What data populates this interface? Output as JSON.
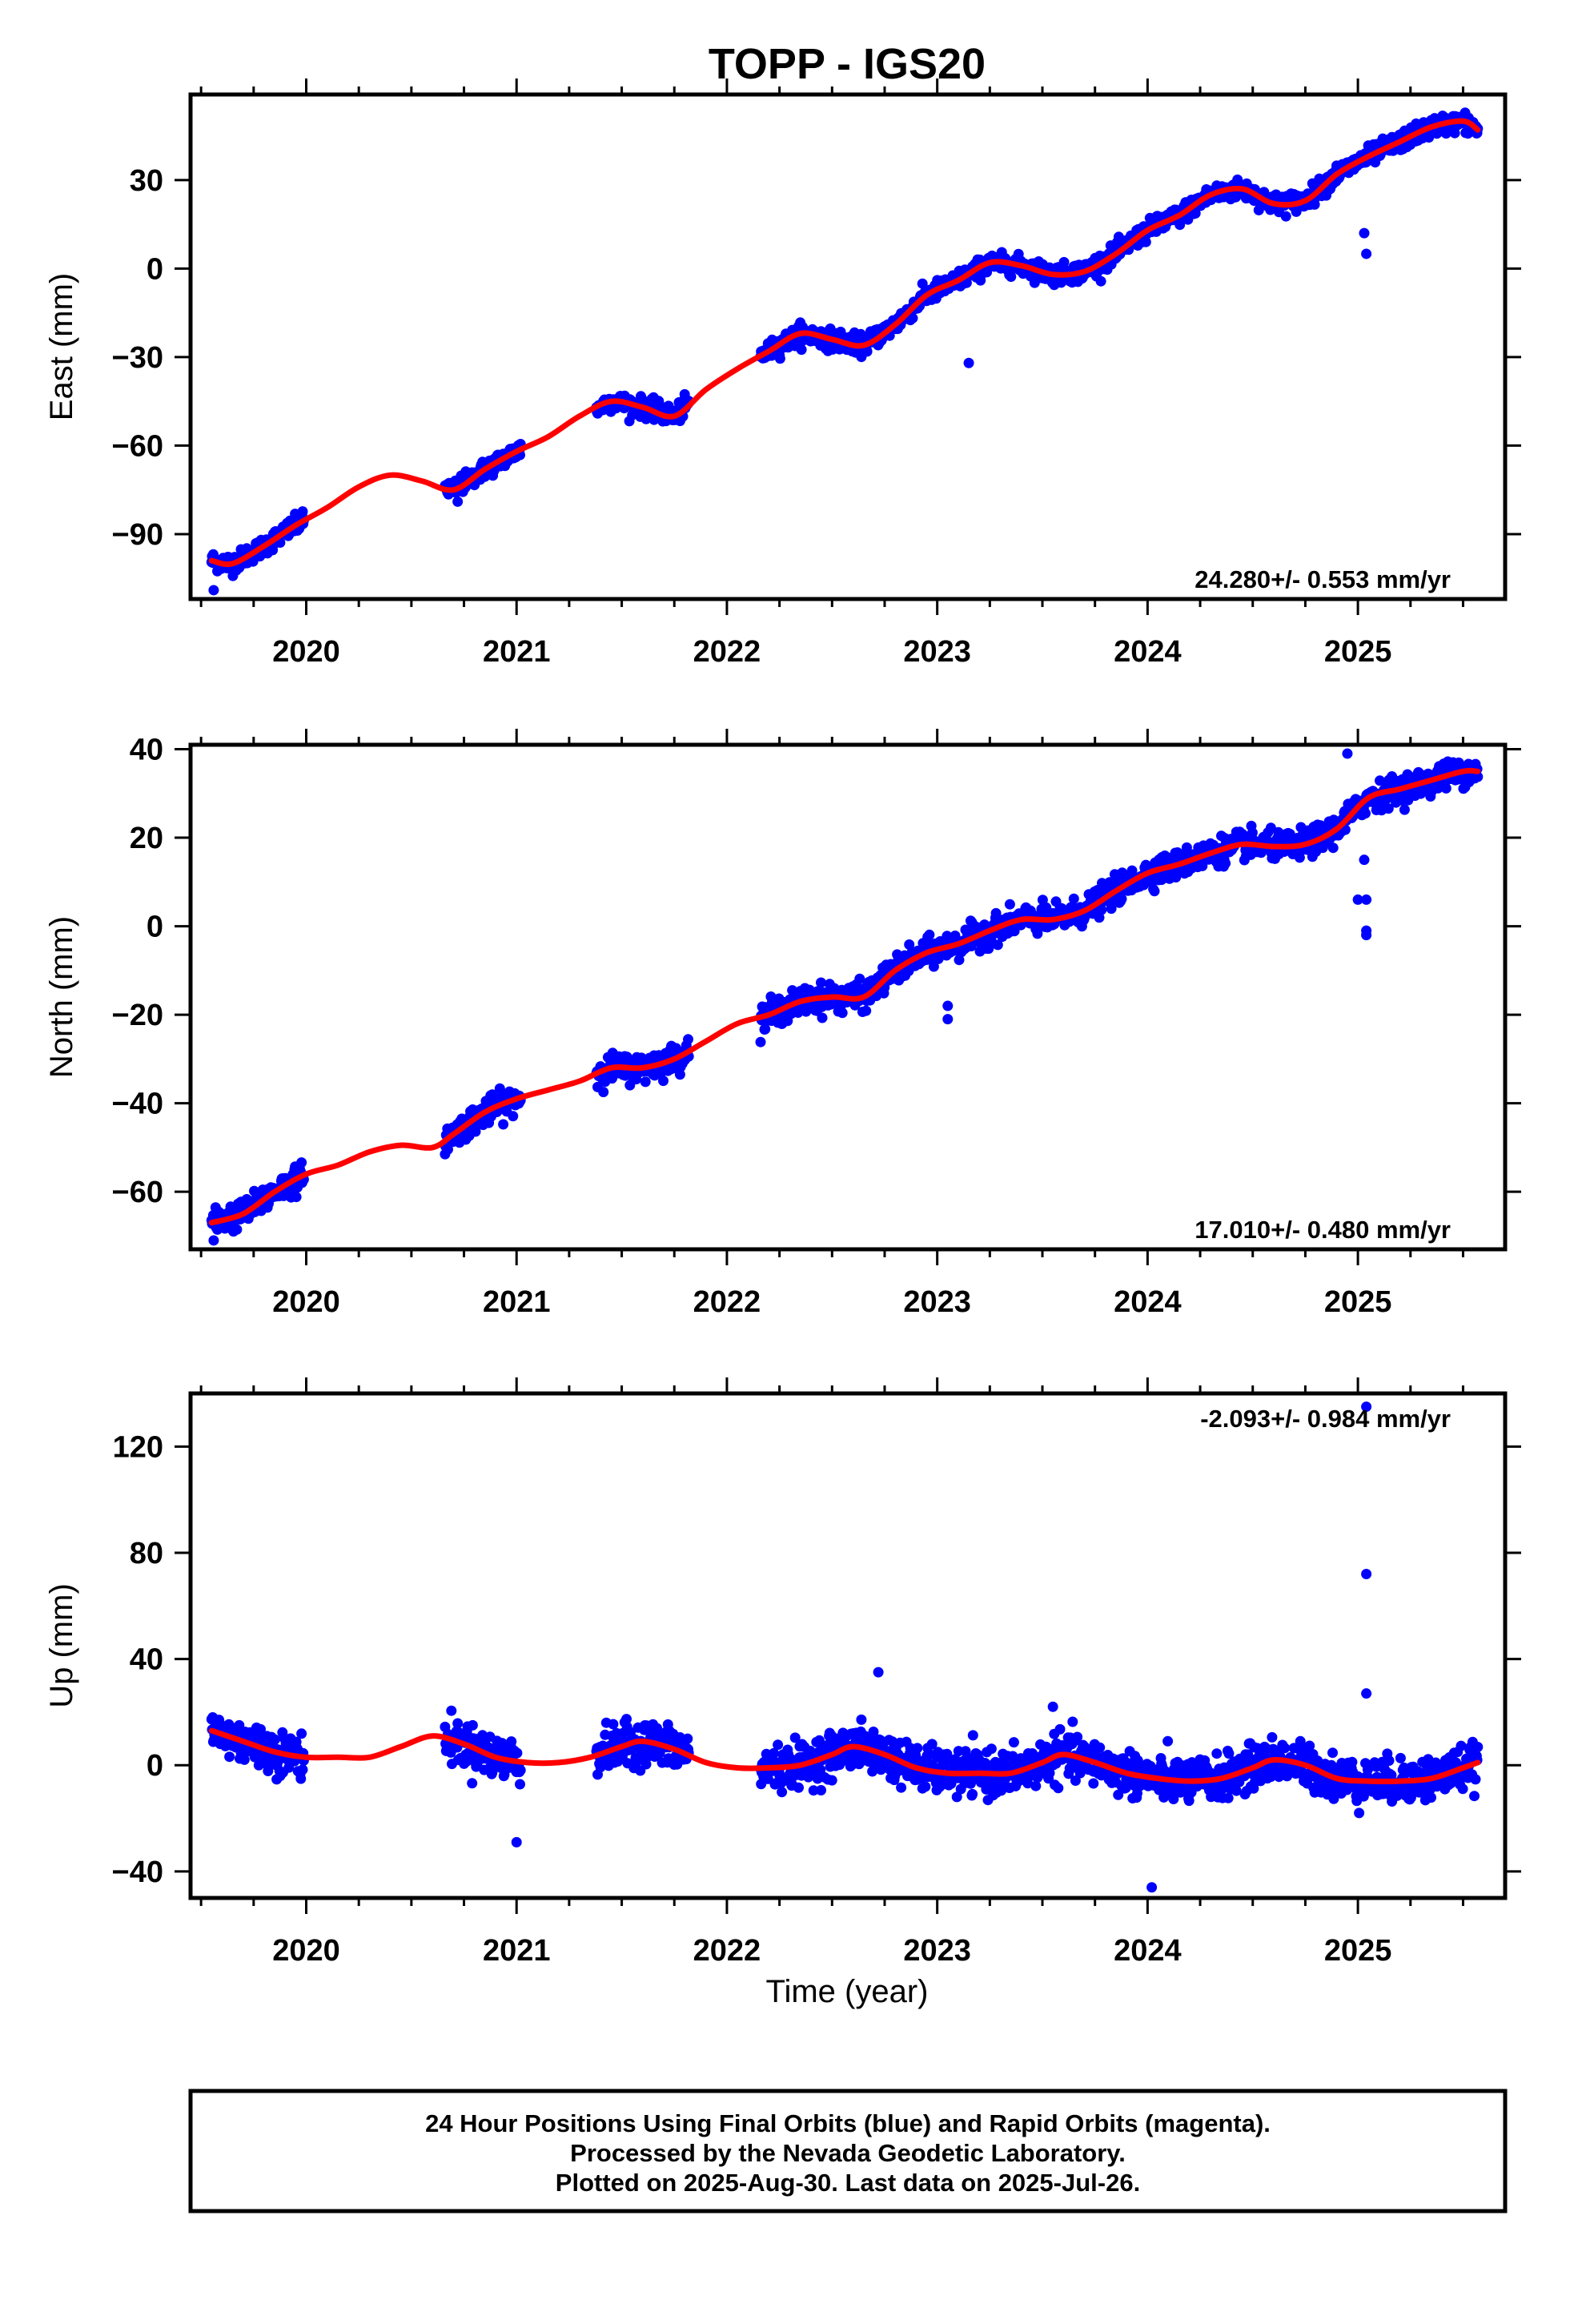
{
  "title": "TOPP - IGS20",
  "xlabel": "Time (year)",
  "footer": {
    "lines": [
      "24 Hour Positions Using Final Orbits (blue) and Rapid Orbits (magenta).",
      "Processed by the Nevada Geodetic Laboratory.",
      "Plotted on 2025-Aug-30. Last data on 2025-Jul-26."
    ]
  },
  "colors": {
    "data": "#0000ff",
    "model": "#ff0000",
    "frame": "#000000"
  },
  "chart_data": [
    {
      "type": "scatter",
      "title": "TOPP - IGS20",
      "ylabel": "East (mm)",
      "xlim": [
        2019.45,
        2025.7
      ],
      "ylim": [
        -112,
        59
      ],
      "xticks": [
        2020,
        2021,
        2022,
        2023,
        2024,
        2025
      ],
      "yticks": [
        -90,
        -60,
        -30,
        0,
        30
      ],
      "ytick_labels": [
        "−90",
        "−60",
        "−30",
        "0",
        "30"
      ],
      "rate_text": "24.280+/- 0.553 mm/yr",
      "rate_position": "bottom-right",
      "grid": false,
      "series": [
        {
          "name": "Final Orbits",
          "style": "points",
          "color": "#0000ff",
          "segments": [
            [
              2019.55,
              2019.99
            ],
            [
              2020.66,
              2021.02
            ],
            [
              2021.38,
              2021.82
            ],
            [
              2022.16,
              2022.97
            ],
            [
              2022.97,
              2025.57
            ]
          ],
          "outliers": [
            [
              2019.56,
              -109
            ],
            [
              2023.15,
              -32
            ],
            [
              2025.03,
              12
            ],
            [
              2025.04,
              5
            ],
            [
              2020.72,
              -79
            ]
          ],
          "scatter_sd_mm": 1.6
        },
        {
          "name": "Model",
          "style": "line",
          "color": "#ff0000",
          "x": [
            2019.55,
            2019.65,
            2019.8,
            2019.95,
            2020.1,
            2020.25,
            2020.4,
            2020.55,
            2020.7,
            2020.85,
            2021.0,
            2021.15,
            2021.3,
            2021.45,
            2021.6,
            2021.75,
            2021.9,
            2022.05,
            2022.2,
            2022.35,
            2022.5,
            2022.65,
            2022.8,
            2022.95,
            2023.1,
            2023.25,
            2023.4,
            2023.55,
            2023.7,
            2023.85,
            2024.0,
            2024.15,
            2024.3,
            2024.45,
            2024.6,
            2024.75,
            2024.9,
            2025.05,
            2025.2,
            2025.35,
            2025.5,
            2025.57
          ],
          "y": [
            -99,
            -100,
            -94,
            -87,
            -81,
            -74,
            -70,
            -72,
            -75,
            -68,
            -62,
            -57,
            -50,
            -45,
            -47,
            -50,
            -41,
            -34,
            -28,
            -22,
            -24,
            -26,
            -19,
            -9,
            -4,
            2,
            1,
            -2,
            -1,
            5,
            13,
            18,
            25,
            27,
            22,
            23,
            32,
            38,
            43,
            48,
            50,
            47
          ]
        }
      ]
    },
    {
      "type": "scatter",
      "ylabel": "North (mm)",
      "xlim": [
        2019.45,
        2025.7
      ],
      "ylim": [
        -73,
        41
      ],
      "xticks": [
        2020,
        2021,
        2022,
        2023,
        2024,
        2025
      ],
      "yticks": [
        -60,
        -40,
        -20,
        0,
        20,
        40
      ],
      "ytick_labels": [
        "−60",
        "−40",
        "−20",
        "0",
        "20",
        "40"
      ],
      "rate_text": "17.010+/- 0.480 mm/yr",
      "rate_position": "bottom-right",
      "grid": false,
      "series": [
        {
          "name": "Final Orbits",
          "style": "points",
          "color": "#0000ff",
          "segments": [
            [
              2019.55,
              2019.99
            ],
            [
              2020.66,
              2021.02
            ],
            [
              2021.38,
              2021.82
            ],
            [
              2022.16,
              2022.97
            ],
            [
              2022.97,
              2025.57
            ]
          ],
          "outliers": [
            [
              2019.56,
              -71
            ],
            [
              2023.05,
              -21
            ],
            [
              2023.05,
              -18
            ],
            [
              2025.0,
              6
            ],
            [
              2025.04,
              6
            ],
            [
              2025.04,
              -1
            ],
            [
              2025.04,
              -2
            ],
            [
              2024.95,
              39
            ],
            [
              2022.75,
              -13
            ],
            [
              2025.03,
              15
            ]
          ],
          "scatter_sd_mm": 1.5
        },
        {
          "name": "Model",
          "style": "line",
          "color": "#ff0000",
          "x": [
            2019.55,
            2019.7,
            2019.85,
            2020.0,
            2020.15,
            2020.3,
            2020.45,
            2020.6,
            2020.7,
            2020.85,
            2021.0,
            2021.15,
            2021.3,
            2021.45,
            2021.6,
            2021.75,
            2021.9,
            2022.05,
            2022.2,
            2022.35,
            2022.5,
            2022.65,
            2022.8,
            2022.95,
            2023.1,
            2023.25,
            2023.4,
            2023.55,
            2023.7,
            2023.85,
            2024.0,
            2024.15,
            2024.3,
            2024.45,
            2024.6,
            2024.75,
            2024.9,
            2025.05,
            2025.2,
            2025.35,
            2025.5,
            2025.57
          ],
          "y": [
            -67,
            -65,
            -60,
            -56,
            -54,
            -51,
            -49.5,
            -50,
            -47,
            -42,
            -39,
            -37,
            -35,
            -32,
            -32,
            -30,
            -26,
            -22,
            -20,
            -17,
            -16,
            -16,
            -10,
            -6,
            -4,
            -1,
            1.5,
            1.5,
            3.5,
            8,
            12,
            14,
            16.5,
            18.5,
            18,
            18.5,
            22,
            29,
            31,
            33,
            35,
            35
          ]
        }
      ]
    },
    {
      "type": "scatter",
      "ylabel": "Up (mm)",
      "xlim": [
        2019.45,
        2025.7
      ],
      "ylim": [
        -50,
        140
      ],
      "xticks": [
        2020,
        2021,
        2022,
        2023,
        2024,
        2025
      ],
      "yticks": [
        -40,
        0,
        40,
        80,
        120
      ],
      "ytick_labels": [
        "−40",
        "0",
        "40",
        "80",
        "120"
      ],
      "rate_text": "-2.093+/- 0.984 mm/yr",
      "rate_position": "top-right",
      "grid": false,
      "series": [
        {
          "name": "Final Orbits",
          "style": "points",
          "color": "#0000ff",
          "segments": [
            [
              2019.55,
              2019.99
            ],
            [
              2020.66,
              2021.02
            ],
            [
              2021.38,
              2021.82
            ],
            [
              2022.16,
              2022.97
            ],
            [
              2022.97,
              2025.57
            ]
          ],
          "outliers": [
            [
              2025.04,
              135
            ],
            [
              2025.04,
              72
            ],
            [
              2025.04,
              27
            ],
            [
              2024.02,
              -46
            ],
            [
              2021.0,
              -29
            ],
            [
              2022.72,
              35
            ],
            [
              2023.55,
              22
            ]
          ],
          "scatter_sd_mm": 4.0
        },
        {
          "name": "Model",
          "style": "line",
          "color": "#ff0000",
          "x": [
            2019.55,
            2019.7,
            2019.85,
            2020.0,
            2020.15,
            2020.3,
            2020.45,
            2020.6,
            2020.75,
            2020.9,
            2021.05,
            2021.2,
            2021.35,
            2021.5,
            2021.6,
            2021.75,
            2021.9,
            2022.05,
            2022.2,
            2022.35,
            2022.5,
            2022.6,
            2022.75,
            2022.9,
            2023.05,
            2023.2,
            2023.35,
            2023.5,
            2023.6,
            2023.75,
            2023.9,
            2024.05,
            2024.2,
            2024.35,
            2024.5,
            2024.6,
            2024.75,
            2024.9,
            2025.05,
            2025.2,
            2025.35,
            2025.5,
            2025.57
          ],
          "y": [
            13,
            9,
            5,
            3,
            3,
            3,
            7,
            11,
            8,
            3,
            1,
            1,
            3,
            7,
            9,
            6,
            1,
            -1,
            -1,
            0,
            4,
            7,
            4,
            -1,
            -3,
            -3,
            -3,
            1,
            4,
            1,
            -3,
            -5,
            -6,
            -5,
            -1,
            2,
            0,
            -5,
            -6,
            -6,
            -5,
            -1,
            1
          ]
        }
      ]
    }
  ]
}
